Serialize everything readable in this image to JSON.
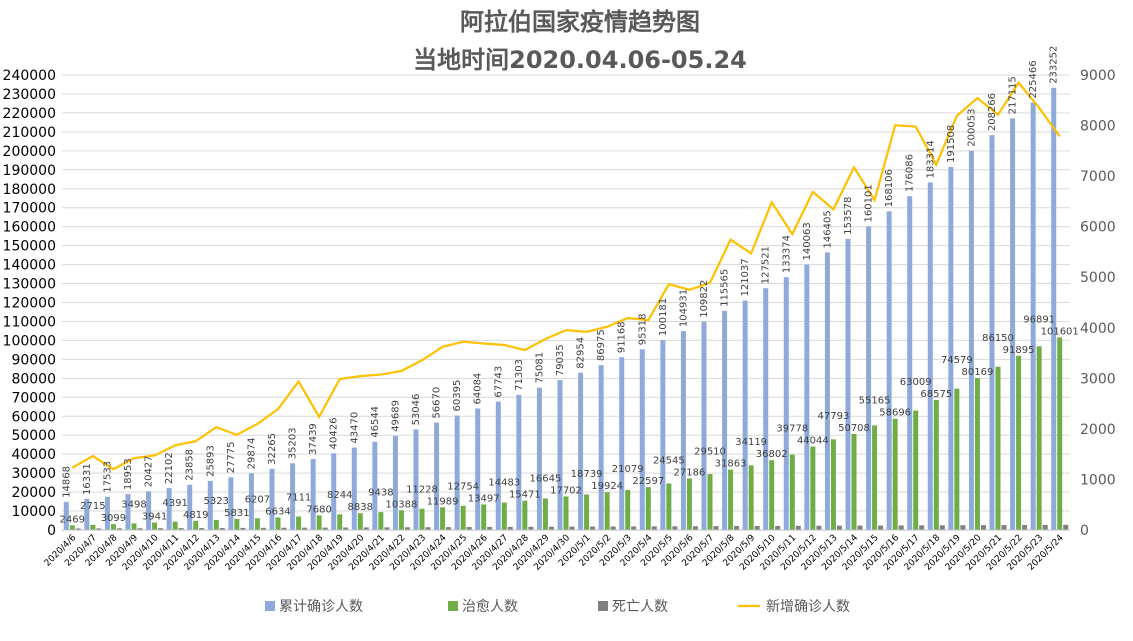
{
  "chart_data": {
    "type": "bar",
    "title": "阿拉伯国家疫情趋势图",
    "subtitle": "当地时间2020.04.06-05.24",
    "categories": [
      "2020/4/6",
      "2020/4/7",
      "2020/4/8",
      "2020/4/9",
      "2020/4/10",
      "2020/4/11",
      "2020/4/12",
      "2020/4/13",
      "2020/4/14",
      "2020/4/15",
      "2020/4/16",
      "2020/4/17",
      "2020/4/18",
      "2020/4/19",
      "2020/4/20",
      "2020/4/21",
      "2020/4/22",
      "2020/4/23",
      "2020/4/24",
      "2020/4/25",
      "2020/4/26",
      "2020/4/27",
      "2020/4/28",
      "2020/4/29",
      "2020/4/30",
      "2020/5/1",
      "2020/5/2",
      "2020/5/3",
      "2020/5/4",
      "2020/5/5",
      "2020/5/6",
      "2020/5/7",
      "2020/5/8",
      "2020/5/9",
      "2020/5/10",
      "2020/5/11",
      "2020/5/12",
      "2020/5/13",
      "2020/5/14",
      "2020/5/15",
      "2020/5/16",
      "2020/5/17",
      "2020/5/18",
      "2020/5/19",
      "2020/5/20",
      "2020/5/21",
      "2020/5/22",
      "2020/5/23",
      "2020/5/24"
    ],
    "series": [
      {
        "name": "累计确诊人数",
        "type": "bar",
        "axis": "left",
        "color": "#8eaadb",
        "labels": true,
        "values": [
          14868,
          16331,
          17533,
          18953,
          20427,
          22102,
          23858,
          25893,
          27775,
          29874,
          32265,
          35203,
          37439,
          40426,
          43470,
          46544,
          49689,
          53046,
          56670,
          60395,
          64084,
          67743,
          71303,
          75081,
          79035,
          82954,
          86975,
          91168,
          95318,
          100181,
          104931,
          109822,
          115565,
          121037,
          127521,
          133374,
          140063,
          146405,
          153578,
          160101,
          168106,
          176086,
          183314,
          191508,
          200053,
          208266,
          217115,
          225466,
          233252
        ]
      },
      {
        "name": "治愈人数",
        "type": "bar",
        "axis": "left",
        "color": "#70ad47",
        "labels": true,
        "values": [
          2469,
          2715,
          3099,
          3498,
          3941,
          4391,
          4819,
          5323,
          5831,
          6207,
          6634,
          7111,
          7680,
          8244,
          8838,
          9438,
          10388,
          11228,
          11989,
          12754,
          13497,
          14483,
          15471,
          16645,
          17702,
          18739,
          19924,
          21079,
          22597,
          24545,
          27186,
          29510,
          31863,
          34119,
          36802,
          39778,
          44044,
          47793,
          50708,
          55165,
          58696,
          63009,
          68575,
          74579,
          80169,
          86150,
          91895,
          96891,
          101601
        ]
      },
      {
        "name": "死亡人数",
        "type": "bar",
        "axis": "left",
        "color": "#7f7f7f",
        "labels": false,
        "values": [
          800,
          840,
          880,
          920,
          960,
          1000,
          1040,
          1080,
          1120,
          1160,
          1200,
          1240,
          1280,
          1320,
          1360,
          1400,
          1440,
          1480,
          1520,
          1560,
          1600,
          1640,
          1680,
          1720,
          1760,
          1800,
          1840,
          1880,
          1920,
          1960,
          2000,
          2040,
          2080,
          2120,
          2160,
          2200,
          2240,
          2280,
          2320,
          2360,
          2400,
          2440,
          2480,
          2520,
          2560,
          2600,
          2640,
          2680,
          2720
        ]
      },
      {
        "name": "新增确诊人数",
        "type": "line",
        "axis": "right",
        "color": "#ffc000",
        "labels": false,
        "values": [
          1230,
          1463,
          1202,
          1420,
          1474,
          1675,
          1756,
          2035,
          1882,
          2099,
          2391,
          2938,
          2236,
          2987,
          3044,
          3074,
          3145,
          3357,
          3624,
          3725,
          3689,
          3659,
          3560,
          3778,
          3954,
          3919,
          4021,
          4193,
          4150,
          4863,
          4750,
          4891,
          5743,
          5472,
          6484,
          5853,
          6689,
          6342,
          7173,
          6523,
          8005,
          7980,
          7228,
          8194,
          8545,
          8213,
          8849,
          8351,
          7786
        ]
      }
    ],
    "ylim": [
      0,
      240000
    ],
    "yticks": [
      0,
      10000,
      20000,
      30000,
      40000,
      50000,
      60000,
      70000,
      80000,
      90000,
      100000,
      110000,
      120000,
      130000,
      140000,
      150000,
      160000,
      170000,
      180000,
      190000,
      200000,
      210000,
      220000,
      230000,
      240000
    ],
    "y2lim": [
      0,
      9000
    ],
    "y2ticks": [
      0,
      1000,
      2000,
      3000,
      4000,
      5000,
      6000,
      7000,
      8000,
      9000
    ],
    "grid": true,
    "legend": "bottom"
  }
}
